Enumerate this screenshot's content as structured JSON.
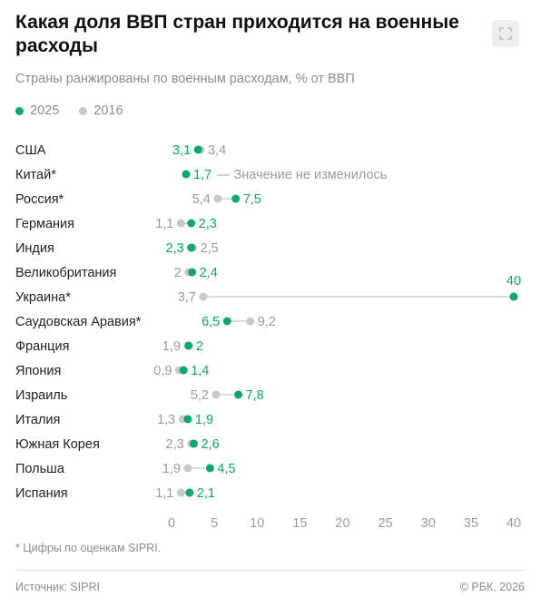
{
  "title": "Какая доля ВВП стран приходится на военные расходы",
  "subtitle": "Страны ранжированы по военным расходам, % от ВВП",
  "footnote": "* Цифры по оценкам SIPRI.",
  "source": "Источник: SIPRI",
  "copyright": "© РБК, 2026",
  "colors": {
    "y2025": "#0aa86a",
    "y2016": "#c8c8c8",
    "connector": "#b5b5b5"
  },
  "icons": {
    "expand": "expand-icon"
  },
  "chart_data": {
    "type": "dumbbell",
    "series": [
      {
        "name": "2025",
        "color": "#0aa86a"
      },
      {
        "name": "2016",
        "color": "#c8c8c8"
      }
    ],
    "xlim": [
      0,
      40
    ],
    "xticks": [
      "0",
      "5",
      "10",
      "15",
      "20",
      "25",
      "30",
      "35",
      "40"
    ],
    "rows": [
      {
        "country": "США",
        "v2025": 3.1,
        "v2016": 3.4,
        "l2025": "3,1",
        "l2016": "3,4"
      },
      {
        "country": "Китай*",
        "v2025": 1.7,
        "v2016": 1.7,
        "l2025": "1,7",
        "l2016": "",
        "note": "— Значение не изменилось"
      },
      {
        "country": "Россия*",
        "v2025": 7.5,
        "v2016": 5.4,
        "l2025": "7,5",
        "l2016": "5,4"
      },
      {
        "country": "Германия",
        "v2025": 2.3,
        "v2016": 1.1,
        "l2025": "2,3",
        "l2016": "1,1"
      },
      {
        "country": "Индия",
        "v2025": 2.3,
        "v2016": 2.5,
        "l2025": "2,3",
        "l2016": "2,5"
      },
      {
        "country": "Великобритания",
        "v2025": 2.4,
        "v2016": 2,
        "l2025": "2,4",
        "l2016": "2"
      },
      {
        "country": "Украина*",
        "v2025": 40,
        "v2016": 3.7,
        "l2025": "40",
        "l2016": "3,7"
      },
      {
        "country": "Саудовская Аравия*",
        "v2025": 6.5,
        "v2016": 9.2,
        "l2025": "6,5",
        "l2016": "9,2"
      },
      {
        "country": "Франция",
        "v2025": 2,
        "v2016": 1.9,
        "l2025": "2",
        "l2016": "1,9"
      },
      {
        "country": "Япония",
        "v2025": 1.4,
        "v2016": 0.9,
        "l2025": "1,4",
        "l2016": "0,9"
      },
      {
        "country": "Израиль",
        "v2025": 7.8,
        "v2016": 5.2,
        "l2025": "7,8",
        "l2016": "5,2"
      },
      {
        "country": "Италия",
        "v2025": 1.9,
        "v2016": 1.3,
        "l2025": "1,9",
        "l2016": "1,3"
      },
      {
        "country": "Южная Корея",
        "v2025": 2.6,
        "v2016": 2.3,
        "l2025": "2,6",
        "l2016": "2,3"
      },
      {
        "country": "Польша",
        "v2025": 4.5,
        "v2016": 1.9,
        "l2025": "4,5",
        "l2016": "1,9"
      },
      {
        "country": "Испания",
        "v2025": 2.1,
        "v2016": 1.1,
        "l2025": "2,1",
        "l2016": "1,1"
      }
    ]
  }
}
